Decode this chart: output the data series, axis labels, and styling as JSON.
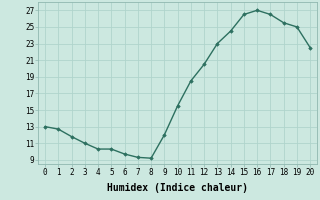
{
  "x": [
    0,
    1,
    2,
    3,
    4,
    5,
    6,
    7,
    8,
    9,
    10,
    11,
    12,
    13,
    14,
    15,
    16,
    17,
    18,
    19,
    20
  ],
  "y": [
    13,
    12.7,
    11.8,
    11,
    10.3,
    10.3,
    9.7,
    9.3,
    9.2,
    12,
    15.5,
    18.5,
    20.5,
    23,
    24.5,
    26.5,
    27,
    26.5,
    25.5,
    25,
    22.5
  ],
  "line_color": "#2d7060",
  "marker": "D",
  "marker_size": 1.8,
  "bg_color": "#cce8e0",
  "grid_color": "#b0d4cc",
  "xlabel": "Humidex (Indice chaleur)",
  "xlim": [
    -0.5,
    20.5
  ],
  "ylim": [
    8.5,
    28
  ],
  "yticks": [
    9,
    11,
    13,
    15,
    17,
    19,
    21,
    23,
    25,
    27
  ],
  "xticks": [
    0,
    1,
    2,
    3,
    4,
    5,
    6,
    7,
    8,
    9,
    10,
    11,
    12,
    13,
    14,
    15,
    16,
    17,
    18,
    19,
    20
  ],
  "tick_fontsize": 5.5,
  "label_fontsize": 7,
  "line_width": 1.0
}
